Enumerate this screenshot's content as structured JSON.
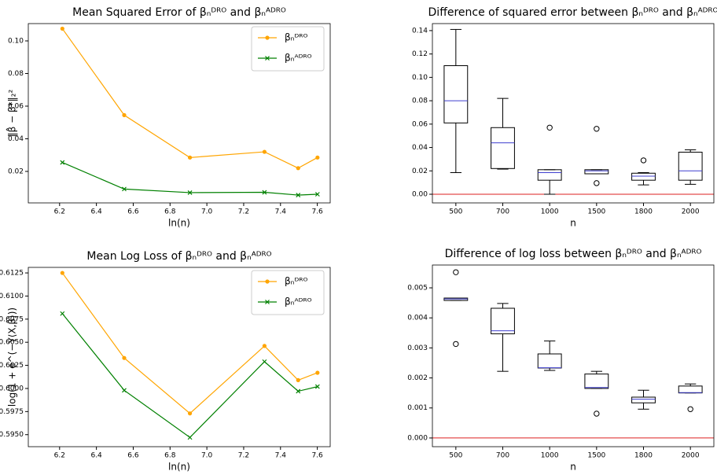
{
  "chart_data": [
    {
      "type": "line",
      "title": "Mean Squared Error of βₙᴰᴿᴼ and βₙᴬᴰᴿᴼ",
      "xlabel": "ln(n)",
      "ylabel": "‖β̂ − β*‖₂²",
      "x": [
        6.215,
        6.551,
        6.908,
        7.313,
        7.496,
        7.601
      ],
      "series": [
        {
          "name": "βₙᴰᴿᴼ",
          "color": "#ffa500",
          "marker": "o",
          "values": [
            0.1075,
            0.0545,
            0.0285,
            0.032,
            0.022,
            0.0285
          ]
        },
        {
          "name": "βₙᴬᴰᴿᴼ",
          "color": "#008000",
          "marker": "x",
          "values": [
            0.0255,
            0.0092,
            0.007,
            0.0072,
            0.0055,
            0.006
          ]
        }
      ],
      "xlim": [
        6.03,
        7.67
      ],
      "ylim": [
        0.0007,
        0.1106
      ],
      "xticks": [
        6.2,
        6.4,
        6.6,
        6.8,
        {
          "value": 7,
          "label": "7.0"
        },
        7.2,
        7.4,
        7.6
      ],
      "yticks": [
        0.02,
        0.04,
        0.06,
        0.08,
        {
          "value": 0.1,
          "label": "0.10"
        }
      ],
      "legend": "upper right"
    },
    {
      "type": "box",
      "title": "Difference of squared error between βₙᴰᴿᴼ and βₙᴬᴰᴿᴼ",
      "xlabel": "n",
      "categories": [
        "500",
        "700",
        "1000",
        "1500",
        "1800",
        "2000"
      ],
      "boxes": [
        {
          "whislo": 0.0185,
          "q1": 0.061,
          "med": 0.08,
          "q3": 0.11,
          "whishi": 0.141,
          "fliers": []
        },
        {
          "whislo": 0.0215,
          "q1": 0.022,
          "med": 0.044,
          "q3": 0.057,
          "whishi": 0.082,
          "fliers": []
        },
        {
          "whislo": 0.0,
          "q1": 0.012,
          "med": 0.0185,
          "q3": 0.021,
          "whishi": 0.021,
          "fliers": [
            0.057
          ]
        },
        {
          "whislo": 0.0175,
          "q1": 0.0175,
          "med": 0.02,
          "q3": 0.021,
          "whishi": 0.021,
          "fliers": [
            0.056,
            0.0095
          ]
        },
        {
          "whislo": 0.008,
          "q1": 0.012,
          "med": 0.0155,
          "q3": 0.018,
          "whishi": 0.0185,
          "fliers": [
            0.029
          ]
        },
        {
          "whislo": 0.0085,
          "q1": 0.012,
          "med": 0.02,
          "q3": 0.036,
          "whishi": 0.038,
          "fliers": []
        }
      ],
      "box_color": "#000000",
      "median_color": "#3f3fcf",
      "hline": 0,
      "hline_color": "#dd2222",
      "ylim": [
        -0.0074,
        0.146
      ],
      "yticks": [
        {
          "value": 0,
          "label": "0.00"
        },
        0.02,
        0.04,
        0.06,
        0.08,
        {
          "value": 0.1,
          "label": "0.10"
        },
        0.12,
        0.14
      ]
    },
    {
      "type": "line",
      "title": "Mean Log Loss of βₙᴰᴿᴼ and βₙᴬᴰᴿᴼ",
      "xlabel": "ln(n)",
      "ylabel": "log(1 + e^(−Y⟨X,β̂⟩))",
      "x": [
        6.215,
        6.551,
        6.908,
        7.313,
        7.496,
        7.601
      ],
      "series": [
        {
          "name": "βₙᴰᴿᴼ",
          "color": "#ffa500",
          "marker": "o",
          "values": [
            0.6125,
            0.6033,
            0.5973,
            0.6046,
            0.6009,
            0.6017
          ]
        },
        {
          "name": "βₙᴬᴰᴿᴼ",
          "color": "#008000",
          "marker": "x",
          "values": [
            0.6081,
            0.5998,
            0.5947,
            0.6029,
            0.5997,
            0.6002
          ]
        }
      ],
      "xlim": [
        6.03,
        7.67
      ],
      "ylim": [
        0.5937,
        0.6131
      ],
      "xticks": [
        6.2,
        6.4,
        6.6,
        6.8,
        {
          "value": 7,
          "label": "7.0"
        },
        7.2,
        7.4,
        7.6
      ],
      "yticks": [
        {
          "value": 0.595,
          "label": "0.5950"
        },
        0.5975,
        {
          "value": 0.6,
          "label": "0.6000"
        },
        0.6025,
        {
          "value": 0.605,
          "label": "0.6050"
        },
        0.6075,
        {
          "value": 0.61,
          "label": "0.6100"
        },
        0.6125
      ],
      "legend": "upper right"
    },
    {
      "type": "box",
      "title": "Difference of log loss between βₙᴰᴿᴼ and βₙᴬᴰᴿᴼ",
      "xlabel": "n",
      "categories": [
        "500",
        "700",
        "1000",
        "1500",
        "1800",
        "2000"
      ],
      "boxes": [
        {
          "whislo": 0.00458,
          "q1": 0.00458,
          "med": 0.00463,
          "q3": 0.00466,
          "whishi": 0.00466,
          "fliers": [
            0.00552,
            0.00313
          ]
        },
        {
          "whislo": 0.00222,
          "q1": 0.00347,
          "med": 0.00357,
          "q3": 0.00432,
          "whishi": 0.00448,
          "fliers": []
        },
        {
          "whislo": 0.00225,
          "q1": 0.00233,
          "med": 0.00234,
          "q3": 0.0028,
          "whishi": 0.00323,
          "fliers": []
        },
        {
          "whislo": 0.00165,
          "q1": 0.00165,
          "med": 0.00168,
          "q3": 0.00213,
          "whishi": 0.00222,
          "fliers": [
            0.00081
          ]
        },
        {
          "whislo": 0.00096,
          "q1": 0.00117,
          "med": 0.00129,
          "q3": 0.00136,
          "whishi": 0.00159,
          "fliers": []
        },
        {
          "whislo": 0.0015,
          "q1": 0.0015,
          "med": 0.00151,
          "q3": 0.00173,
          "whishi": 0.0018,
          "fliers": [
            0.00096
          ]
        }
      ],
      "box_color": "#000000",
      "median_color": "#3f3fcf",
      "hline": 0,
      "hline_color": "#dd2222",
      "ylim": [
        -0.00029,
        0.00576
      ],
      "yticks": [
        {
          "value": 0,
          "label": "0.000"
        },
        0.001,
        0.002,
        0.003,
        0.004,
        0.005
      ]
    }
  ]
}
